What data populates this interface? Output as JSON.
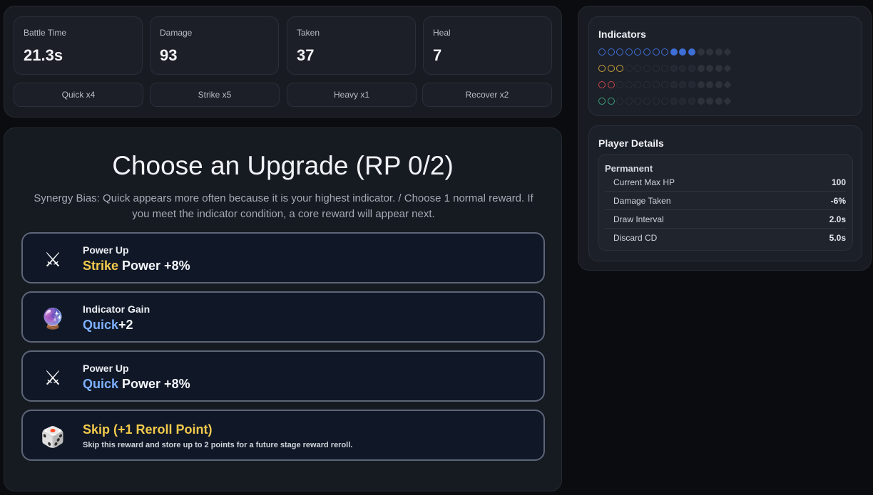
{
  "stats": [
    {
      "label": "Battle Time",
      "value": "21.3s"
    },
    {
      "label": "Damage",
      "value": "93"
    },
    {
      "label": "Taken",
      "value": "37"
    },
    {
      "label": "Heal",
      "value": "7"
    }
  ],
  "actions": [
    "Quick x4",
    "Strike x5",
    "Heavy x1",
    "Recover x2"
  ],
  "upgrade": {
    "title": "Choose an Upgrade (RP 0/2)",
    "subtitle": "Synergy Bias: Quick appears more often because it is your highest indicator. / Choose 1 normal reward. If you meet the indicator condition, a core reward will appear next.",
    "cards": [
      {
        "icon": "crossed-swords-icon",
        "glyph": "⚔",
        "title": "Power Up",
        "highlight": "Strike",
        "rest": " Power +8%",
        "color": "gold"
      },
      {
        "icon": "crystal-ball-icon",
        "glyph": "🔮",
        "title": "Indicator Gain",
        "highlight": "Quick",
        "rest": "+2",
        "color": "blue"
      },
      {
        "icon": "crossed-swords-icon",
        "glyph": "⚔",
        "title": "Power Up",
        "highlight": "Quick",
        "rest": " Power +8%",
        "color": "blue"
      }
    ],
    "skip": {
      "icon": "dice-icon",
      "glyph": "🎲",
      "title": "Skip (+1 Reroll Point)",
      "desc": "Skip this reward and store up to 2 points for a future stage reward reroll."
    }
  },
  "indicators": {
    "title": "Indicators",
    "slots": 15,
    "rows": [
      {
        "color": "#3f6fd6",
        "value": 11
      },
      {
        "color": "#c9a13c",
        "value": 3
      },
      {
        "color": "#c8464a",
        "value": 2
      },
      {
        "color": "#3e9e78",
        "value": 2
      }
    ]
  },
  "player": {
    "title": "Player Details",
    "section": "Permanent",
    "rows": [
      {
        "label": "Current Max HP",
        "value": "100"
      },
      {
        "label": "Damage Taken",
        "value": "-6%"
      },
      {
        "label": "Draw Interval",
        "value": "2.0s"
      },
      {
        "label": "Discard CD",
        "value": "5.0s"
      }
    ]
  }
}
